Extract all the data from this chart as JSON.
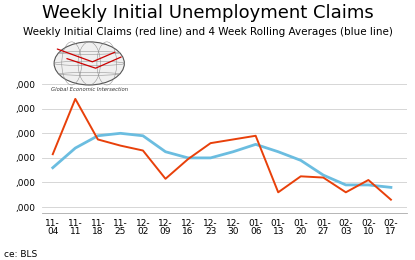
{
  "title": "Weekly Initial Unemployment Claims",
  "subtitle": "Weekly Initial Claims (red line) and 4 Week Rolling Averages (blue line)",
  "source": "ce: BLS",
  "x_labels": [
    "11-\n04",
    "11-\n11",
    "11-\n18",
    "11-\n25",
    "12-\n02",
    "12-\n09",
    "12-\n16",
    "12-\n23",
    "12-\n30",
    "01-\n06",
    "01-\n13",
    "01-\n20",
    "01-\n27",
    "02-\n03",
    "02-\n10",
    "02-\n17"
  ],
  "red_values": [
    253000,
    298000,
    265000,
    260000,
    256000,
    233000,
    249000,
    262000,
    265000,
    268000,
    222000,
    235000,
    234000,
    222000,
    232000,
    216000
  ],
  "blue_values": [
    242000,
    258000,
    268000,
    270000,
    268000,
    255000,
    250000,
    250000,
    255000,
    261000,
    255000,
    248000,
    236000,
    228000,
    228000,
    226000
  ],
  "ylim": [
    205000,
    315000
  ],
  "yticks": [
    210000,
    230000,
    250000,
    270000,
    290000,
    310000
  ],
  "ytick_labels": [
    ",000",
    ",000",
    ",000",
    ",000",
    ",000",
    ",000"
  ],
  "red_color": "#e8400a",
  "blue_color": "#6bbde0",
  "title_fontsize": 13,
  "subtitle_fontsize": 7.5,
  "tick_fontsize": 6.5,
  "source_fontsize": 6.5,
  "bg_color": "#ffffff",
  "grid_color": "#d0d0d0"
}
